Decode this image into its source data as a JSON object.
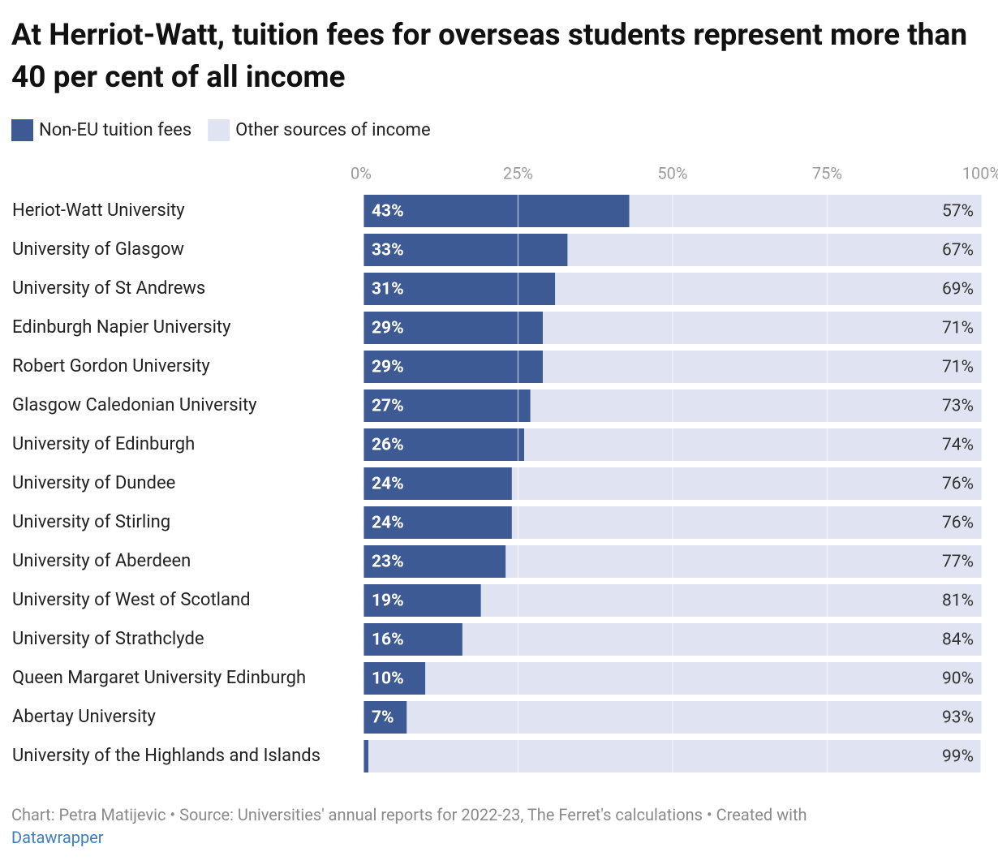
{
  "chart_data": {
    "type": "stacked-bar",
    "title": "At Herriot-Watt, tuition fees for overseas students represent more than 40 per cent of all income",
    "categories": [
      "Heriot-Watt University",
      "University of Glasgow",
      "University of St Andrews",
      "Edinburgh Napier University",
      "Robert Gordon University",
      "Glasgow Caledonian University",
      "University of Edinburgh",
      "University of Dundee",
      "University of Stirling",
      "University of Aberdeen",
      "University of West of Scotland",
      "University of Strathclyde",
      "Queen Margaret University Edinburgh",
      "Abertay University",
      "University of the Highlands and Islands"
    ],
    "series": [
      {
        "name": "Non-EU tuition fees",
        "color": "#3e5a94",
        "values": [
          43,
          33,
          31,
          29,
          29,
          27,
          26,
          24,
          24,
          23,
          19,
          16,
          10,
          7,
          0.8
        ],
        "value_labels": [
          "43%",
          "33%",
          "31%",
          "29%",
          "29%",
          "27%",
          "26%",
          "24%",
          "24%",
          "23%",
          "19%",
          "16%",
          "10%",
          "7%",
          null
        ]
      },
      {
        "name": "Other sources of income",
        "color": "#dfe3f2",
        "values": [
          57,
          67,
          69,
          71,
          71,
          73,
          74,
          76,
          76,
          77,
          81,
          84,
          90,
          93,
          99
        ],
        "value_labels": [
          "57%",
          "67%",
          "69%",
          "71%",
          "71%",
          "73%",
          "74%",
          "76%",
          "76%",
          "77%",
          "81%",
          "84%",
          "90%",
          "93%",
          "99%"
        ]
      }
    ],
    "xlim": [
      0,
      100
    ],
    "xticks": [
      {
        "value": 0,
        "label": "0%"
      },
      {
        "value": 25,
        "label": "25%"
      },
      {
        "value": 50,
        "label": "50%"
      },
      {
        "value": 75,
        "label": "75%"
      },
      {
        "value": 100,
        "label": "100%"
      }
    ],
    "grid": true,
    "caption": "Chart: Petra Matijevic • Source: Universities' annual reports for 2022-23, The Ferret's calculations • Created with",
    "caption_link": "Datawrapper"
  }
}
